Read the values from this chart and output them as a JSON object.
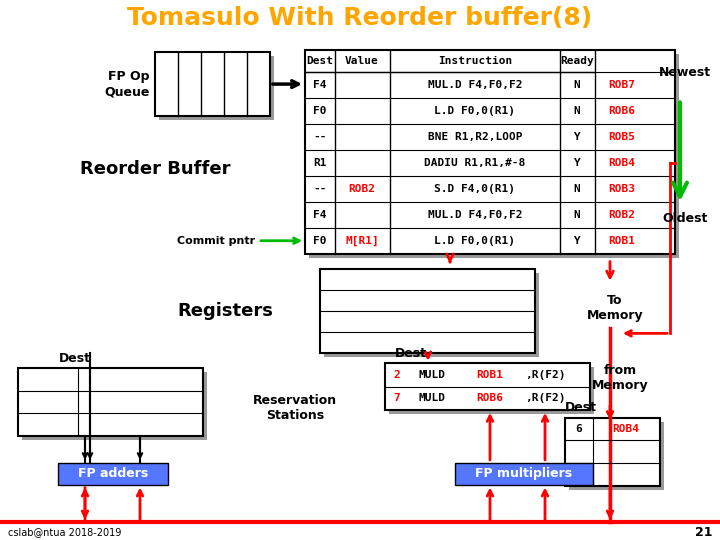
{
  "title": "Tomasulo With Reorder buffer(8)",
  "title_color": "#FFA500",
  "title_fontsize": 18,
  "bg_color": "#FFFFFF",
  "rob_rows": [
    [
      "F4",
      "",
      "MUL.D F4,F0,F2",
      "N",
      "ROB7"
    ],
    [
      "F0",
      "",
      "L.D F0,0(R1)",
      "N",
      "ROB6"
    ],
    [
      "--",
      "",
      "BNE R1,R2,LOOP",
      "Y",
      "ROB5"
    ],
    [
      "R1",
      "",
      "DADIU R1,R1,#-8",
      "Y",
      "ROB4"
    ],
    [
      "--",
      "ROB2",
      "S.D F4,0(R1)",
      "N",
      "ROB3"
    ],
    [
      "F4",
      "",
      "MUL.D F4,F0,F2",
      "N",
      "ROB2"
    ],
    [
      "F0",
      "M[R1]",
      "L.D F0,0(R1)",
      "Y",
      "ROB1"
    ]
  ],
  "rob_value_colors": [
    "black",
    "black",
    "black",
    "black",
    "red",
    "black",
    "red"
  ],
  "fp_queue_label": "FP Op\nQueue",
  "reorder_buffer_label": "Reorder Buffer",
  "commit_pntr_label": "Commit pntr",
  "registers_label": "Registers",
  "to_memory_label": "To\nMemory",
  "from_memory_label": "from\nMemory",
  "dest_label": "Dest",
  "reservation_label": "Reservation\nStations",
  "fp_adders_label": "FP adders",
  "fp_multipliers_label": "FP multipliers",
  "newest_label": "Newest",
  "oldest_label": "Oldest",
  "red": "#FF0000",
  "green": "#00BB00",
  "black": "#000000"
}
